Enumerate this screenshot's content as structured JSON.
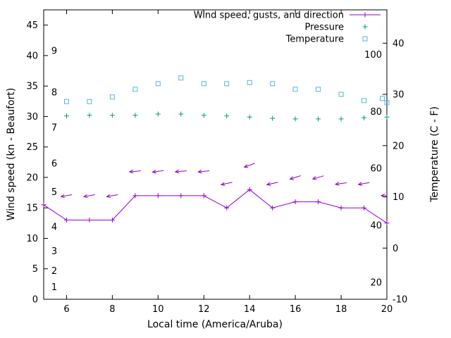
{
  "chart_data": {
    "type": "line",
    "x_axis": {
      "label": "Local time (America/Aruba)",
      "range": [
        5,
        20
      ],
      "ticks": [
        6,
        8,
        10,
        12,
        14,
        16,
        18,
        20
      ]
    },
    "y_axis_left": {
      "label": "Wind speed (kn - Beaufort)",
      "range": [
        0,
        47.5
      ],
      "ticks": [
        0,
        5,
        10,
        15,
        20,
        25,
        30,
        35,
        40,
        45
      ]
    },
    "y_axis_right": {
      "label": "Temperature (C - F)",
      "range": [
        -10,
        46.5
      ],
      "ticks": [
        -10,
        0,
        10,
        20,
        30,
        40
      ]
    },
    "grid": "off",
    "beaufort_scale_labels": [
      {
        "beaufort": "1",
        "kn": 2
      },
      {
        "beaufort": "2",
        "kn": 4.7
      },
      {
        "beaufort": "3",
        "kn": 7.9
      },
      {
        "beaufort": "4",
        "kn": 11.9
      },
      {
        "beaufort": "5",
        "kn": 17.6
      },
      {
        "beaufort": "6",
        "kn": 22.3
      },
      {
        "beaufort": "7",
        "kn": 28.2
      },
      {
        "beaufort": "8",
        "kn": 34
      },
      {
        "beaufort": "9",
        "kn": 40.8
      }
    ],
    "fahrenheit_scale_labels": [
      "20",
      "40",
      "60",
      "80",
      "100"
    ],
    "legend": {
      "position": "top-right-inside",
      "items": [
        {
          "label": "Wind speed, gusts, and direction",
          "series": "wind",
          "color": "#9400d3",
          "marker": "line-plus"
        },
        {
          "label": "Pressure",
          "series": "pressure",
          "color": "#009e73",
          "marker": "plus"
        },
        {
          "label": "Temperature",
          "series": "temperature",
          "color": "#56b4e9",
          "marker": "open-square"
        }
      ]
    },
    "series": {
      "wind_speed_kn": {
        "x": [
          5,
          6,
          7,
          8,
          9,
          10,
          11,
          12,
          13,
          14,
          15,
          16,
          17,
          18,
          19,
          20
        ],
        "values": [
          15.5,
          13,
          13,
          13,
          17,
          17,
          17,
          17,
          15,
          18,
          15,
          16,
          16,
          15,
          15,
          12.5
        ]
      },
      "gusts_kn": {
        "x": [
          6,
          7,
          8,
          9,
          10,
          11,
          12,
          13,
          14,
          15,
          16,
          17,
          18,
          19,
          20
        ],
        "values": [
          17,
          17,
          17,
          21,
          21,
          21,
          21,
          19,
          22,
          19,
          20,
          20,
          19,
          19,
          17
        ],
        "arrow_angle_deg": [
          170,
          170,
          170,
          175,
          172,
          175,
          174,
          168,
          160,
          168,
          162,
          164,
          172,
          170,
          180
        ]
      },
      "pressure": {
        "x": [
          6,
          7,
          8,
          9,
          10,
          11,
          12,
          13,
          14,
          15,
          16,
          17,
          18,
          19,
          20
        ],
        "values": [
          30.1,
          30.2,
          30.2,
          30.2,
          30.4,
          30.4,
          30.2,
          30.1,
          29.9,
          29.7,
          29.6,
          29.6,
          29.6,
          29.8,
          29.9
        ]
      },
      "temperature_c": {
        "x": [
          6,
          7,
          8,
          9,
          10,
          11,
          12,
          13,
          14,
          15,
          16,
          17,
          18,
          19,
          19.8,
          20
        ],
        "values": [
          28.6,
          28.6,
          29.5,
          31,
          32.1,
          33.2,
          32.1,
          32.1,
          32.3,
          32.1,
          31,
          31,
          30,
          28.8,
          29.2,
          28.4
        ]
      }
    }
  }
}
